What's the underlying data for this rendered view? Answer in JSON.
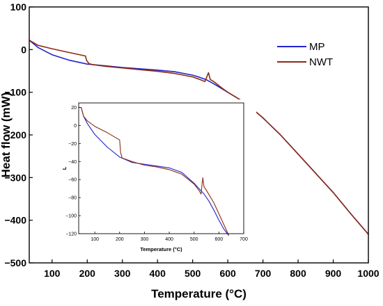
{
  "chart_data": [
    {
      "type": "line",
      "xlabel": "Temperature (°C)",
      "ylabel": "Heat flow (mW)",
      "xlim": [
        35,
        1000
      ],
      "ylim": [
        -500,
        100
      ],
      "xticks": [
        100,
        200,
        300,
        400,
        500,
        600,
        700,
        800,
        900,
        1000
      ],
      "yticks": [
        100,
        0,
        -100,
        -200,
        -300,
        -400,
        -500
      ],
      "legend_placement": "top-right",
      "grid": false,
      "series": [
        {
          "name": "MP",
          "color": "#2222cc",
          "x": [
            35,
            60,
            100,
            150,
            200,
            250,
            300,
            350,
            400,
            450,
            500,
            520,
            540,
            560,
            600,
            650,
            700,
            750,
            800,
            850,
            900,
            950,
            1000
          ],
          "y": [
            22,
            5,
            -12,
            -25,
            -34,
            -38,
            -42,
            -45,
            -48,
            -52,
            -60,
            -65,
            -71,
            -80,
            -100,
            -125,
            -160,
            -200,
            -245,
            -290,
            -335,
            -385,
            -433
          ]
        },
        {
          "name": "NWT",
          "color": "#8b2b14",
          "x": [
            35,
            60,
            100,
            150,
            195,
            198,
            205,
            215,
            250,
            300,
            350,
            400,
            450,
            500,
            520,
            535,
            545,
            550,
            560,
            580,
            600,
            650,
            700,
            750,
            800,
            850,
            900,
            950,
            1000
          ],
          "y": [
            22,
            10,
            2,
            -7,
            -15,
            -25,
            -33,
            -35,
            -39,
            -43,
            -47,
            -51,
            -56,
            -64,
            -70,
            -75,
            -54,
            -70,
            -75,
            -88,
            -100,
            -125,
            -160,
            -200,
            -245,
            -290,
            -335,
            -385,
            -433
          ]
        }
      ]
    },
    {
      "type": "line",
      "xlabel": "Temperature (°C)",
      "ylabel": "L",
      "xlim": [
        35,
        700
      ],
      "ylim": [
        -120,
        25
      ],
      "xticks": [
        100,
        200,
        300,
        400,
        500,
        600,
        700
      ],
      "yticks": [
        20,
        0,
        -20,
        -40,
        -60,
        -80,
        -100,
        -120
      ],
      "grid": false,
      "series": [
        {
          "color": "#2222cc",
          "x": [
            35,
            45,
            55,
            70,
            100,
            150,
            200,
            250,
            300,
            350,
            400,
            450,
            500,
            520,
            540,
            560,
            580,
            600,
            620,
            640
          ],
          "y": [
            20,
            20,
            10,
            2,
            -10,
            -24,
            -35,
            -41,
            -43,
            -45,
            -47,
            -52,
            -64,
            -70,
            -76,
            -84,
            -94,
            -105,
            -115,
            -122
          ]
        },
        {
          "color": "#8b2b14",
          "x": [
            35,
            45,
            55,
            70,
            100,
            150,
            200,
            204,
            210,
            250,
            300,
            350,
            400,
            450,
            500,
            520,
            528,
            535,
            540,
            550,
            580,
            600,
            620,
            640
          ],
          "y": [
            20,
            20,
            10,
            5,
            -1,
            -8,
            -16,
            -30,
            -36,
            -40,
            -44,
            -46,
            -49,
            -54,
            -65,
            -72,
            -76,
            -58,
            -68,
            -72,
            -86,
            -98,
            -110,
            -122
          ]
        }
      ]
    }
  ]
}
